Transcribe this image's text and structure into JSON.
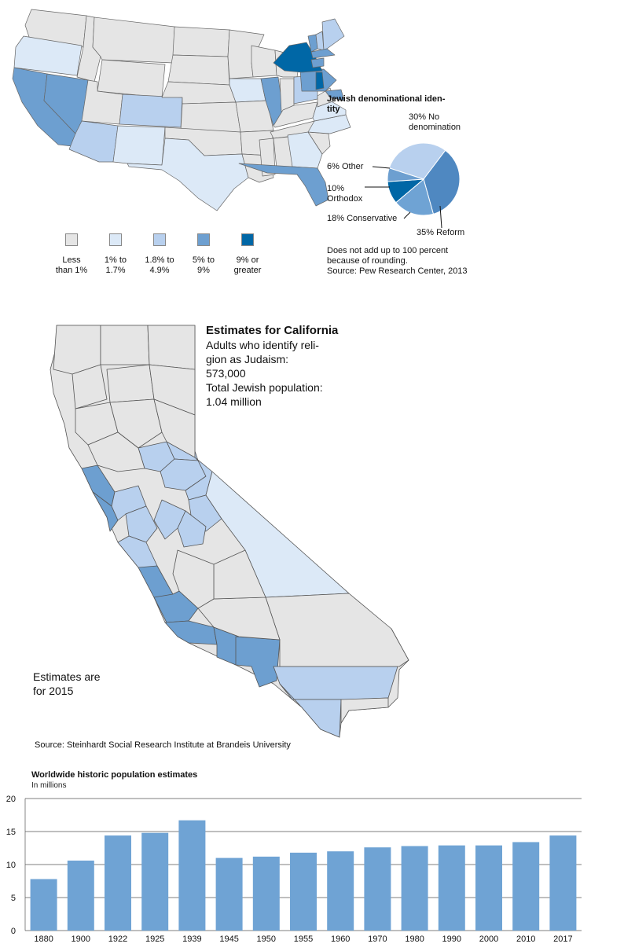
{
  "colors": {
    "lt1": "#e5e5e5",
    "c1to17": "#dce9f7",
    "c18to49": "#b8d0ee",
    "c5to9": "#6d9fd0",
    "c9plus": "#0067a6",
    "border": "#555555",
    "bar": "#6fa3d4"
  },
  "legend": [
    {
      "label": "Less\nthan 1%",
      "color_key": "lt1"
    },
    {
      "label": "1% to\n1.7%",
      "color_key": "c1to17"
    },
    {
      "label": "1.8% to\n4.9%",
      "color_key": "c18to49"
    },
    {
      "label": "5% to\n9%",
      "color_key": "c5to9"
    },
    {
      "label": "9% or\ngreater",
      "color_key": "c9plus"
    }
  ],
  "pie": {
    "title": "Jewish denominational iden-\ntity",
    "slices": [
      {
        "label": "30% No\ndenomination",
        "value": 30,
        "color": "#b8d0ee"
      },
      {
        "label": "35% Reform",
        "value": 35,
        "color": "#4f88c1"
      },
      {
        "label": "18% Conservative",
        "value": 18,
        "color": "#6fa3d4"
      },
      {
        "label": "10%\nOrthodox",
        "value": 10,
        "color": "#0067a6"
      },
      {
        "label": "6% Other",
        "value": 6,
        "color": "#6d9fd0"
      }
    ],
    "note": "Does not add up to 100 percent\nbecause of rounding.\nSource: Pew Research Center, 2013"
  },
  "california": {
    "title": "Estimates for California",
    "text": "Adults who identify reli-\ngion as Judaism:\n573,000\nTotal Jewish population:\n1.04 million",
    "note": "Estimates are\nfor 2015",
    "source": "Source: Steinhardt Social Research Institute at Brandeis University"
  },
  "chart_data": {
    "type": "bar",
    "title": "Worldwide historic population estimates",
    "subtitle": "In millions",
    "categories": [
      "1880",
      "1900",
      "1922",
      "1925",
      "1939",
      "1945",
      "1950",
      "1955",
      "1960",
      "1970",
      "1980",
      "1990",
      "2000",
      "2010",
      "2017"
    ],
    "values": [
      7.8,
      10.6,
      14.4,
      14.8,
      16.7,
      11.0,
      11.2,
      11.8,
      12.0,
      12.6,
      12.8,
      12.9,
      12.9,
      13.4,
      14.4
    ],
    "ylim": [
      0,
      20
    ],
    "yticks": [
      "0",
      "5",
      "10",
      "15",
      "20"
    ],
    "grid": true
  }
}
